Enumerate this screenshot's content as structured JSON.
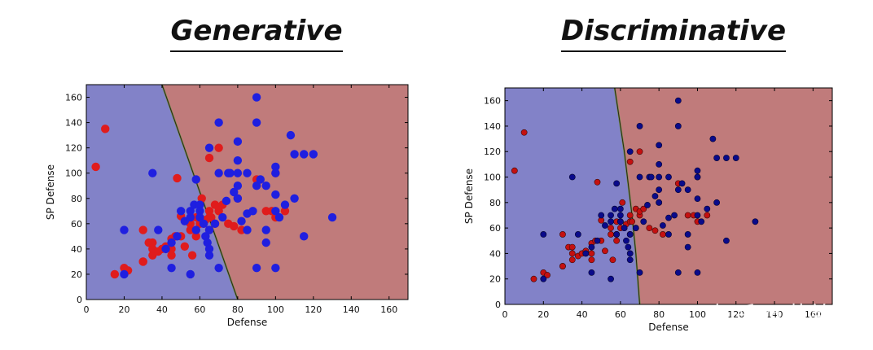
{
  "watermark": "知乎 @萌弟",
  "colors": {
    "blue_region": "#8282c8",
    "red_region": "#c07b7b",
    "blue_point": "#1f1fe0",
    "red_point": "#e01c1c",
    "blue_point_dark": "#0a0a8a",
    "red_point_dark": "#c41010"
  },
  "chart_data": [
    {
      "type": "scatter",
      "title": "Generative",
      "xlabel": "Defense",
      "ylabel": "SP Defense",
      "xlim": [
        0,
        170
      ],
      "ylim": [
        0,
        170
      ],
      "xticks": [
        0,
        20,
        40,
        60,
        80,
        100,
        120,
        140,
        160
      ],
      "yticks": [
        0,
        20,
        40,
        60,
        80,
        100,
        120,
        140,
        160
      ],
      "boundary": [
        [
          40,
          170
        ],
        [
          80,
          0
        ]
      ],
      "series": [
        {
          "name": "blue",
          "points": [
            [
              20,
              55
            ],
            [
              20,
              20
            ],
            [
              35,
              100
            ],
            [
              38,
              55
            ],
            [
              42,
              40
            ],
            [
              45,
              25
            ],
            [
              45,
              45
            ],
            [
              48,
              50
            ],
            [
              50,
              70
            ],
            [
              52,
              62
            ],
            [
              55,
              20
            ],
            [
              55,
              65
            ],
            [
              55,
              70
            ],
            [
              57,
              75
            ],
            [
              58,
              95
            ],
            [
              60,
              75
            ],
            [
              60,
              70
            ],
            [
              62,
              60
            ],
            [
              63,
              50
            ],
            [
              64,
              45
            ],
            [
              65,
              35
            ],
            [
              65,
              40
            ],
            [
              65,
              55
            ],
            [
              65,
              120
            ],
            [
              68,
              60
            ],
            [
              70,
              140
            ],
            [
              70,
              100
            ],
            [
              72,
              65
            ],
            [
              74,
              78
            ],
            [
              75,
              100
            ],
            [
              76,
              100
            ],
            [
              78,
              85
            ],
            [
              80,
              90
            ],
            [
              80,
              80
            ],
            [
              80,
              100
            ],
            [
              80,
              125
            ],
            [
              80,
              110
            ],
            [
              82,
              62
            ],
            [
              85,
              68
            ],
            [
              85,
              100
            ],
            [
              88,
              70
            ],
            [
              90,
              160
            ],
            [
              90,
              140
            ],
            [
              90,
              90
            ],
            [
              90,
              25
            ],
            [
              92,
              95
            ],
            [
              95,
              45
            ],
            [
              95,
              55
            ],
            [
              95,
              90
            ],
            [
              100,
              105
            ],
            [
              100,
              100
            ],
            [
              100,
              70
            ],
            [
              100,
              83
            ],
            [
              100,
              25
            ],
            [
              102,
              65
            ],
            [
              105,
              75
            ],
            [
              108,
              130
            ],
            [
              110,
              80
            ],
            [
              110,
              115
            ],
            [
              115,
              50
            ],
            [
              115,
              115
            ],
            [
              120,
              115
            ],
            [
              130,
              65
            ],
            [
              70,
              25
            ],
            [
              85,
              55
            ],
            [
              60,
              65
            ],
            [
              58,
              55
            ]
          ]
        },
        {
          "name": "red",
          "points": [
            [
              5,
              105
            ],
            [
              10,
              135
            ],
            [
              15,
              20
            ],
            [
              20,
              25
            ],
            [
              22,
              23
            ],
            [
              30,
              30
            ],
            [
              30,
              55
            ],
            [
              30,
              30
            ],
            [
              33,
              45
            ],
            [
              35,
              35
            ],
            [
              35,
              40
            ],
            [
              35,
              45
            ],
            [
              38,
              38
            ],
            [
              40,
              40
            ],
            [
              42,
              40
            ],
            [
              42,
              42
            ],
            [
              45,
              35
            ],
            [
              45,
              40
            ],
            [
              45,
              48
            ],
            [
              47,
              50
            ],
            [
              48,
              96
            ],
            [
              50,
              50
            ],
            [
              50,
              66
            ],
            [
              52,
              42
            ],
            [
              55,
              55
            ],
            [
              55,
              60
            ],
            [
              56,
              35
            ],
            [
              58,
              65
            ],
            [
              58,
              55
            ],
            [
              58,
              50
            ],
            [
              60,
              60
            ],
            [
              60,
              65
            ],
            [
              61,
              80
            ],
            [
              62,
              60
            ],
            [
              63,
              63
            ],
            [
              65,
              55
            ],
            [
              65,
              65
            ],
            [
              65,
              70
            ],
            [
              65,
              112
            ],
            [
              66,
              65
            ],
            [
              68,
              60
            ],
            [
              68,
              75
            ],
            [
              70,
              120
            ],
            [
              70,
              70
            ],
            [
              70,
              73
            ],
            [
              72,
              75
            ],
            [
              75,
              60
            ],
            [
              78,
              58
            ],
            [
              80,
              80
            ],
            [
              82,
              55
            ],
            [
              90,
              95
            ],
            [
              95,
              70
            ],
            [
              98,
              70
            ],
            [
              100,
              100
            ],
            [
              100,
              65
            ],
            [
              105,
              70
            ]
          ]
        }
      ]
    },
    {
      "type": "scatter",
      "title": "Discriminative",
      "xlabel": "Defense",
      "ylabel": "SP Defense",
      "xlim": [
        0,
        170
      ],
      "ylim": [
        0,
        170
      ],
      "xticks": [
        0,
        20,
        40,
        60,
        80,
        100,
        120,
        140,
        160
      ],
      "yticks": [
        0,
        20,
        40,
        60,
        80,
        100,
        120,
        140,
        160
      ],
      "boundary": [
        [
          57,
          170
        ],
        [
          62,
          120
        ],
        [
          64,
          95
        ],
        [
          66,
          70
        ],
        [
          68,
          40
        ],
        [
          70,
          0
        ]
      ],
      "series": [
        {
          "name": "blue",
          "points": [
            [
              20,
              55
            ],
            [
              20,
              20
            ],
            [
              35,
              100
            ],
            [
              38,
              55
            ],
            [
              42,
              40
            ],
            [
              45,
              25
            ],
            [
              45,
              45
            ],
            [
              48,
              50
            ],
            [
              50,
              70
            ],
            [
              52,
              62
            ],
            [
              55,
              20
            ],
            [
              55,
              65
            ],
            [
              55,
              70
            ],
            [
              57,
              75
            ],
            [
              58,
              95
            ],
            [
              60,
              75
            ],
            [
              60,
              70
            ],
            [
              62,
              60
            ],
            [
              63,
              50
            ],
            [
              64,
              45
            ],
            [
              65,
              35
            ],
            [
              65,
              40
            ],
            [
              65,
              55
            ],
            [
              65,
              120
            ],
            [
              68,
              60
            ],
            [
              70,
              140
            ],
            [
              70,
              100
            ],
            [
              72,
              65
            ],
            [
              74,
              78
            ],
            [
              75,
              100
            ],
            [
              76,
              100
            ],
            [
              78,
              85
            ],
            [
              80,
              90
            ],
            [
              80,
              80
            ],
            [
              80,
              100
            ],
            [
              80,
              125
            ],
            [
              80,
              110
            ],
            [
              82,
              62
            ],
            [
              85,
              68
            ],
            [
              85,
              100
            ],
            [
              88,
              70
            ],
            [
              90,
              160
            ],
            [
              90,
              140
            ],
            [
              90,
              90
            ],
            [
              90,
              25
            ],
            [
              92,
              95
            ],
            [
              95,
              45
            ],
            [
              95,
              55
            ],
            [
              95,
              90
            ],
            [
              100,
              105
            ],
            [
              100,
              100
            ],
            [
              100,
              70
            ],
            [
              100,
              83
            ],
            [
              100,
              25
            ],
            [
              102,
              65
            ],
            [
              105,
              75
            ],
            [
              108,
              130
            ],
            [
              110,
              80
            ],
            [
              110,
              115
            ],
            [
              115,
              50
            ],
            [
              115,
              115
            ],
            [
              120,
              115
            ],
            [
              130,
              65
            ],
            [
              70,
              25
            ],
            [
              85,
              55
            ],
            [
              60,
              65
            ],
            [
              58,
              55
            ]
          ]
        },
        {
          "name": "red",
          "points": [
            [
              5,
              105
            ],
            [
              10,
              135
            ],
            [
              15,
              20
            ],
            [
              20,
              25
            ],
            [
              22,
              23
            ],
            [
              30,
              30
            ],
            [
              30,
              55
            ],
            [
              30,
              30
            ],
            [
              33,
              45
            ],
            [
              35,
              35
            ],
            [
              35,
              40
            ],
            [
              35,
              45
            ],
            [
              38,
              38
            ],
            [
              40,
              40
            ],
            [
              42,
              40
            ],
            [
              42,
              42
            ],
            [
              45,
              35
            ],
            [
              45,
              40
            ],
            [
              45,
              48
            ],
            [
              47,
              50
            ],
            [
              48,
              96
            ],
            [
              50,
              50
            ],
            [
              50,
              66
            ],
            [
              52,
              42
            ],
            [
              55,
              55
            ],
            [
              55,
              60
            ],
            [
              56,
              35
            ],
            [
              58,
              65
            ],
            [
              58,
              55
            ],
            [
              58,
              50
            ],
            [
              60,
              60
            ],
            [
              60,
              65
            ],
            [
              61,
              80
            ],
            [
              62,
              60
            ],
            [
              63,
              63
            ],
            [
              65,
              55
            ],
            [
              65,
              65
            ],
            [
              65,
              70
            ],
            [
              65,
              112
            ],
            [
              66,
              65
            ],
            [
              68,
              60
            ],
            [
              68,
              75
            ],
            [
              70,
              120
            ],
            [
              70,
              70
            ],
            [
              70,
              73
            ],
            [
              72,
              75
            ],
            [
              75,
              60
            ],
            [
              78,
              58
            ],
            [
              80,
              80
            ],
            [
              82,
              55
            ],
            [
              90,
              95
            ],
            [
              95,
              70
            ],
            [
              98,
              70
            ],
            [
              100,
              100
            ],
            [
              100,
              65
            ],
            [
              105,
              70
            ]
          ]
        }
      ]
    }
  ]
}
